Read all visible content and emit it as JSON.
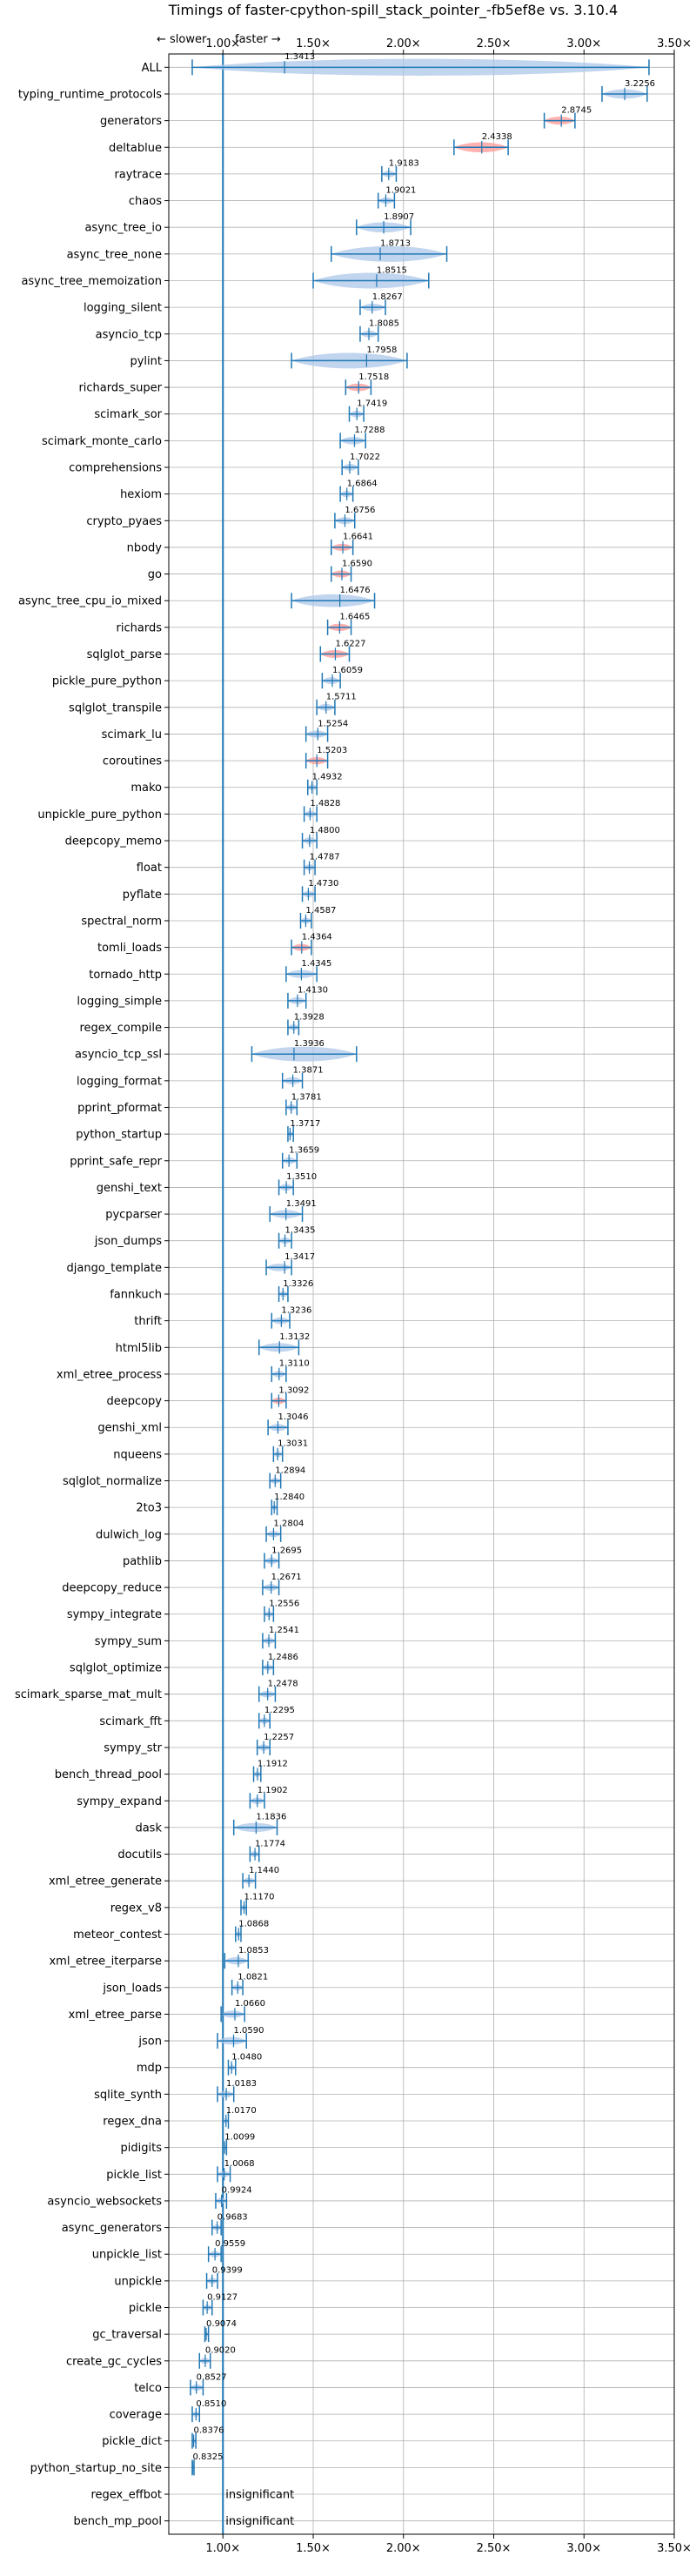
{
  "chart_data": {
    "type": "violin",
    "title": "Timings of faster-cpython-spill_stack_pointer_-fb5ef8e vs. 3.10.4",
    "direction_labels": {
      "slower": "← slower",
      "faster": "faster →"
    },
    "xlim": [
      0.7,
      3.5
    ],
    "xticks": [
      1.0,
      1.5,
      2.0,
      2.5,
      3.0,
      3.5
    ],
    "xtick_labels": [
      "1.00×",
      "1.50×",
      "2.00×",
      "2.50×",
      "3.00×",
      "3.50×"
    ],
    "reference_line": 1.0,
    "grid": true,
    "colors": {
      "normal": "#1f77b4",
      "significant": "#ff9896",
      "violin": "#aec7e8"
    },
    "insignificant_text": "insignificant",
    "benchmarks": [
      {
        "name": "ALL",
        "value": 1.3413,
        "label": "1.3413",
        "min": 0.83,
        "max": 3.36
      },
      {
        "name": "typing_runtime_protocols",
        "value": 3.2256,
        "label": "3.2256",
        "min": 3.1,
        "max": 3.35
      },
      {
        "name": "generators",
        "value": 2.8745,
        "label": "2.8745",
        "min": 2.78,
        "max": 2.95,
        "highlight": true
      },
      {
        "name": "deltablue",
        "value": 2.4338,
        "label": "2.4338",
        "min": 2.28,
        "max": 2.58,
        "highlight": true
      },
      {
        "name": "raytrace",
        "value": 1.9183,
        "label": "1.9183",
        "min": 1.88,
        "max": 1.96
      },
      {
        "name": "chaos",
        "value": 1.9021,
        "label": "1.9021",
        "min": 1.86,
        "max": 1.95
      },
      {
        "name": "async_tree_io",
        "value": 1.8907,
        "label": "1.8907",
        "min": 1.74,
        "max": 2.04
      },
      {
        "name": "async_tree_none",
        "value": 1.8713,
        "label": "1.8713",
        "min": 1.6,
        "max": 2.24
      },
      {
        "name": "async_tree_memoization",
        "value": 1.8515,
        "label": "1.8515",
        "min": 1.5,
        "max": 2.14
      },
      {
        "name": "logging_silent",
        "value": 1.8267,
        "label": "1.8267",
        "min": 1.76,
        "max": 1.9
      },
      {
        "name": "asyncio_tcp",
        "value": 1.8085,
        "label": "1.8085",
        "min": 1.76,
        "max": 1.86
      },
      {
        "name": "pylint",
        "value": 1.7958,
        "label": "1.7958",
        "min": 1.38,
        "max": 2.02
      },
      {
        "name": "richards_super",
        "value": 1.7518,
        "label": "1.7518",
        "min": 1.68,
        "max": 1.82,
        "highlight": true
      },
      {
        "name": "scimark_sor",
        "value": 1.7419,
        "label": "1.7419",
        "min": 1.7,
        "max": 1.78
      },
      {
        "name": "scimark_monte_carlo",
        "value": 1.7288,
        "label": "1.7288",
        "min": 1.65,
        "max": 1.79
      },
      {
        "name": "comprehensions",
        "value": 1.7022,
        "label": "1.7022",
        "min": 1.66,
        "max": 1.75
      },
      {
        "name": "hexiom",
        "value": 1.6864,
        "label": "1.6864",
        "min": 1.65,
        "max": 1.72
      },
      {
        "name": "crypto_pyaes",
        "value": 1.6756,
        "label": "1.6756",
        "min": 1.62,
        "max": 1.73
      },
      {
        "name": "nbody",
        "value": 1.6641,
        "label": "1.6641",
        "min": 1.6,
        "max": 1.72,
        "highlight": true
      },
      {
        "name": "go",
        "value": 1.659,
        "label": "1.6590",
        "min": 1.6,
        "max": 1.71,
        "highlight": true
      },
      {
        "name": "async_tree_cpu_io_mixed",
        "value": 1.6476,
        "label": "1.6476",
        "min": 1.38,
        "max": 1.84
      },
      {
        "name": "richards",
        "value": 1.6465,
        "label": "1.6465",
        "min": 1.58,
        "max": 1.71,
        "highlight": true
      },
      {
        "name": "sqlglot_parse",
        "value": 1.6227,
        "label": "1.6227",
        "min": 1.54,
        "max": 1.7,
        "highlight": true
      },
      {
        "name": "pickle_pure_python",
        "value": 1.6059,
        "label": "1.6059",
        "min": 1.55,
        "max": 1.65
      },
      {
        "name": "sqlglot_transpile",
        "value": 1.5711,
        "label": "1.5711",
        "min": 1.52,
        "max": 1.62
      },
      {
        "name": "scimark_lu",
        "value": 1.5254,
        "label": "1.5254",
        "min": 1.46,
        "max": 1.58
      },
      {
        "name": "coroutines",
        "value": 1.5203,
        "label": "1.5203",
        "min": 1.46,
        "max": 1.58,
        "highlight": true
      },
      {
        "name": "mako",
        "value": 1.4932,
        "label": "1.4932",
        "min": 1.47,
        "max": 1.52
      },
      {
        "name": "unpickle_pure_python",
        "value": 1.4828,
        "label": "1.4828",
        "min": 1.45,
        "max": 1.52
      },
      {
        "name": "deepcopy_memo",
        "value": 1.48,
        "label": "1.4800",
        "min": 1.44,
        "max": 1.52
      },
      {
        "name": "float",
        "value": 1.4787,
        "label": "1.4787",
        "min": 1.45,
        "max": 1.51
      },
      {
        "name": "pyflate",
        "value": 1.473,
        "label": "1.4730",
        "min": 1.44,
        "max": 1.51
      },
      {
        "name": "spectral_norm",
        "value": 1.4587,
        "label": "1.4587",
        "min": 1.43,
        "max": 1.49
      },
      {
        "name": "tomli_loads",
        "value": 1.4364,
        "label": "1.4364",
        "min": 1.38,
        "max": 1.49,
        "highlight": true
      },
      {
        "name": "tornado_http",
        "value": 1.4345,
        "label": "1.4345",
        "min": 1.35,
        "max": 1.52
      },
      {
        "name": "logging_simple",
        "value": 1.413,
        "label": "1.4130",
        "min": 1.36,
        "max": 1.46
      },
      {
        "name": "regex_compile",
        "value": 1.3928,
        "label": "1.3928",
        "min": 1.36,
        "max": 1.42
      },
      {
        "name": "asyncio_tcp_ssl",
        "value": 1.3936,
        "label": "1.3936",
        "min": 1.16,
        "max": 1.74
      },
      {
        "name": "logging_format",
        "value": 1.3871,
        "label": "1.3871",
        "min": 1.33,
        "max": 1.44
      },
      {
        "name": "pprint_pformat",
        "value": 1.3781,
        "label": "1.3781",
        "min": 1.35,
        "max": 1.41
      },
      {
        "name": "python_startup",
        "value": 1.3717,
        "label": "1.3717",
        "min": 1.36,
        "max": 1.39
      },
      {
        "name": "pprint_safe_repr",
        "value": 1.3659,
        "label": "1.3659",
        "min": 1.33,
        "max": 1.41
      },
      {
        "name": "genshi_text",
        "value": 1.351,
        "label": "1.3510",
        "min": 1.31,
        "max": 1.39
      },
      {
        "name": "pycparser",
        "value": 1.3491,
        "label": "1.3491",
        "min": 1.26,
        "max": 1.44
      },
      {
        "name": "json_dumps",
        "value": 1.3435,
        "label": "1.3435",
        "min": 1.31,
        "max": 1.38
      },
      {
        "name": "django_template",
        "value": 1.3417,
        "label": "1.3417",
        "min": 1.24,
        "max": 1.38
      },
      {
        "name": "fannkuch",
        "value": 1.3326,
        "label": "1.3326",
        "min": 1.31,
        "max": 1.36
      },
      {
        "name": "thrift",
        "value": 1.3236,
        "label": "1.3236",
        "min": 1.27,
        "max": 1.37
      },
      {
        "name": "html5lib",
        "value": 1.3132,
        "label": "1.3132",
        "min": 1.2,
        "max": 1.42
      },
      {
        "name": "xml_etree_process",
        "value": 1.311,
        "label": "1.3110",
        "min": 1.27,
        "max": 1.35
      },
      {
        "name": "deepcopy",
        "value": 1.3092,
        "label": "1.3092",
        "min": 1.27,
        "max": 1.35,
        "highlight": true
      },
      {
        "name": "genshi_xml",
        "value": 1.3046,
        "label": "1.3046",
        "min": 1.25,
        "max": 1.36
      },
      {
        "name": "nqueens",
        "value": 1.3031,
        "label": "1.3031",
        "min": 1.28,
        "max": 1.33
      },
      {
        "name": "sqlglot_normalize",
        "value": 1.2894,
        "label": "1.2894",
        "min": 1.26,
        "max": 1.32
      },
      {
        "name": "2to3",
        "value": 1.284,
        "label": "1.2840",
        "min": 1.27,
        "max": 1.3
      },
      {
        "name": "dulwich_log",
        "value": 1.2804,
        "label": "1.2804",
        "min": 1.24,
        "max": 1.32
      },
      {
        "name": "pathlib",
        "value": 1.2695,
        "label": "1.2695",
        "min": 1.23,
        "max": 1.31
      },
      {
        "name": "deepcopy_reduce",
        "value": 1.2671,
        "label": "1.2671",
        "min": 1.22,
        "max": 1.31
      },
      {
        "name": "sympy_integrate",
        "value": 1.2556,
        "label": "1.2556",
        "min": 1.23,
        "max": 1.28
      },
      {
        "name": "sympy_sum",
        "value": 1.2541,
        "label": "1.2541",
        "min": 1.22,
        "max": 1.29
      },
      {
        "name": "sqlglot_optimize",
        "value": 1.2486,
        "label": "1.2486",
        "min": 1.22,
        "max": 1.28
      },
      {
        "name": "scimark_sparse_mat_mult",
        "value": 1.2478,
        "label": "1.2478",
        "min": 1.2,
        "max": 1.29
      },
      {
        "name": "scimark_fft",
        "value": 1.2295,
        "label": "1.2295",
        "min": 1.2,
        "max": 1.26
      },
      {
        "name": "sympy_str",
        "value": 1.2257,
        "label": "1.2257",
        "min": 1.19,
        "max": 1.26
      },
      {
        "name": "bench_thread_pool",
        "value": 1.1912,
        "label": "1.1912",
        "min": 1.17,
        "max": 1.21
      },
      {
        "name": "sympy_expand",
        "value": 1.1902,
        "label": "1.1902",
        "min": 1.15,
        "max": 1.23
      },
      {
        "name": "dask",
        "value": 1.1836,
        "label": "1.1836",
        "min": 1.06,
        "max": 1.3
      },
      {
        "name": "docutils",
        "value": 1.1774,
        "label": "1.1774",
        "min": 1.15,
        "max": 1.2
      },
      {
        "name": "xml_etree_generate",
        "value": 1.144,
        "label": "1.1440",
        "min": 1.11,
        "max": 1.18
      },
      {
        "name": "regex_v8",
        "value": 1.117,
        "label": "1.1170",
        "min": 1.1,
        "max": 1.13
      },
      {
        "name": "meteor_contest",
        "value": 1.0868,
        "label": "1.0868",
        "min": 1.07,
        "max": 1.1
      },
      {
        "name": "xml_etree_iterparse",
        "value": 1.0853,
        "label": "1.0853",
        "min": 1.01,
        "max": 1.14
      },
      {
        "name": "json_loads",
        "value": 1.0821,
        "label": "1.0821",
        "min": 1.05,
        "max": 1.11
      },
      {
        "name": "xml_etree_parse",
        "value": 1.066,
        "label": "1.0660",
        "min": 0.99,
        "max": 1.12
      },
      {
        "name": "json",
        "value": 1.059,
        "label": "1.0590",
        "min": 0.97,
        "max": 1.13
      },
      {
        "name": "mdp",
        "value": 1.048,
        "label": "1.0480",
        "min": 1.03,
        "max": 1.07
      },
      {
        "name": "sqlite_synth",
        "value": 1.0183,
        "label": "1.0183",
        "min": 0.97,
        "max": 1.06
      },
      {
        "name": "regex_dna",
        "value": 1.017,
        "label": "1.0170",
        "min": 1.0,
        "max": 1.03
      },
      {
        "name": "pidigits",
        "value": 1.0099,
        "label": "1.0099",
        "min": 1.0,
        "max": 1.02
      },
      {
        "name": "pickle_list",
        "value": 1.0068,
        "label": "1.0068",
        "min": 0.97,
        "max": 1.04
      },
      {
        "name": "asyncio_websockets",
        "value": 0.9924,
        "label": "0.9924",
        "min": 0.96,
        "max": 1.02
      },
      {
        "name": "async_generators",
        "value": 0.9683,
        "label": "0.9683",
        "min": 0.94,
        "max": 0.99
      },
      {
        "name": "unpickle_list",
        "value": 0.9559,
        "label": "0.9559",
        "min": 0.92,
        "max": 0.99
      },
      {
        "name": "unpickle",
        "value": 0.9399,
        "label": "0.9399",
        "min": 0.91,
        "max": 0.97
      },
      {
        "name": "pickle",
        "value": 0.9127,
        "label": "0.9127",
        "min": 0.89,
        "max": 0.94
      },
      {
        "name": "gc_traversal",
        "value": 0.9074,
        "label": "0.9074",
        "min": 0.9,
        "max": 0.92
      },
      {
        "name": "create_gc_cycles",
        "value": 0.902,
        "label": "0.9020",
        "min": 0.87,
        "max": 0.93
      },
      {
        "name": "telco",
        "value": 0.8527,
        "label": "0.8527",
        "min": 0.82,
        "max": 0.89
      },
      {
        "name": "coverage",
        "value": 0.851,
        "label": "0.8510",
        "min": 0.83,
        "max": 0.87
      },
      {
        "name": "pickle_dict",
        "value": 0.8376,
        "label": "0.8376",
        "min": 0.83,
        "max": 0.85
      },
      {
        "name": "python_startup_no_site",
        "value": 0.8325,
        "label": "0.8325",
        "min": 0.83,
        "max": 0.84
      },
      {
        "name": "regex_effbot",
        "insignificant": true
      },
      {
        "name": "bench_mp_pool",
        "insignificant": true
      }
    ]
  }
}
